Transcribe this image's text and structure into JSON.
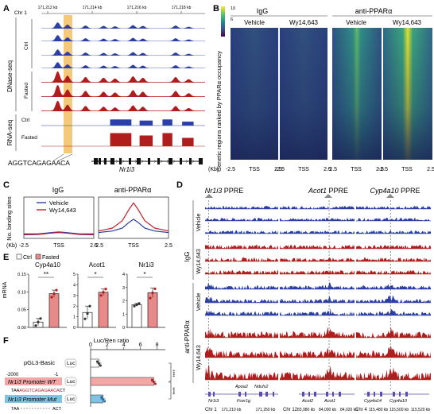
{
  "panels": {
    "A": {
      "letter": "A",
      "chr": "Chr 1",
      "coords": [
        "171,212 kb",
        "171,214 kb",
        "171,216 kb",
        "171,218 kb"
      ],
      "dnase_label": "DNase-seq",
      "rnaseq_label": "RNA-seq",
      "groups": [
        "Ctrl",
        "Fasted"
      ],
      "rna_groups": [
        "Ctrl",
        "Fasted"
      ],
      "motif": "AGGTCAGAGAACA",
      "gene": "Nr1i3",
      "colors": {
        "ctrl": "#2b3fa6",
        "fasted": "#b11d1d",
        "highlight": "#f5c97a"
      }
    },
    "B": {
      "letter": "B",
      "groups": [
        "IgG",
        "anti-PPARα"
      ],
      "conditions": [
        "Vehicle",
        "Wy14,643",
        "Vehicle",
        "Wy14,643"
      ],
      "ylabel": "Genetic regions ranked by PPARα occupancy",
      "kb_label": "(Kb)",
      "ticks": [
        "-2.5",
        "TSS",
        "2.5"
      ],
      "colorbar": [
        "10",
        "8",
        "6",
        "4",
        "2",
        "0"
      ]
    },
    "C": {
      "letter": "C",
      "titles": [
        "IgG",
        "anti-PPARα"
      ],
      "ylabel": "No. binding sites",
      "legend": [
        "Vehicle",
        "Wy14,643"
      ],
      "kb_label": "(Kb)",
      "ticks": [
        "-2.5",
        "TSS",
        "2.5"
      ]
    },
    "D": {
      "letter": "D",
      "loci": [
        {
          "gene": "Nr1i3",
          "suffix": "PPRE"
        },
        {
          "gene": "Acot1",
          "suffix": "PPRE"
        },
        {
          "gene": "Cyp4a10",
          "suffix": "PPRE"
        }
      ],
      "groups": [
        "IgG",
        "anti-PPARα"
      ],
      "conditions": [
        "Vehicle",
        "Wy14,643"
      ],
      "chroms": [
        "Chr 1",
        "Chr 12",
        "Chr 4"
      ],
      "coords": [
        [
          "171,210 kb",
          "171,250 kb"
        ],
        [
          "83,980 kb",
          "84,000 kb",
          "84,020 kb"
        ],
        [
          "115,480 kb",
          "115,500 kb",
          "115,520 kb"
        ]
      ],
      "genes": [
        [
          "Apoa2",
          "Ndufs2",
          "Nr1i3",
          "Fcer1g"
        ],
        [
          "Acot2",
          "Acot1"
        ],
        [
          "Cyp4a14",
          "Cyp4a10"
        ]
      ]
    },
    "E": {
      "letter": "E",
      "legend": [
        "Ctrl",
        "Fasted"
      ],
      "ylabel": "mRNA",
      "charts": [
        {
          "title": "Cyp4a10",
          "sig": "**",
          "ylim": [
            0,
            0.15
          ],
          "ticks": [
            "0.00",
            "0.05",
            "0.10",
            "0.15"
          ]
        },
        {
          "title": "Acot1",
          "sig": "*",
          "ylim": [
            0,
            5
          ],
          "ticks": [
            "0",
            "1",
            "2",
            "3",
            "4",
            "5"
          ]
        },
        {
          "title": "Nr1i3",
          "sig": "*",
          "ylim": [
            0,
            4
          ],
          "ticks": [
            "0",
            "1",
            "2",
            "3",
            "4"
          ]
        }
      ]
    },
    "F": {
      "letter": "F",
      "constructs": [
        "pGL3-Basic",
        "Nr1i3 Promoter WT",
        "Nr1i3 Promoter Mut"
      ],
      "luc": "Luc",
      "pos_start": "-2000",
      "pos_end": "-1",
      "wt_seq_pre": "TAA",
      "wt_seq_motif": "AGGTCAGAGAACA",
      "wt_seq_post": "CT",
      "mut_seq_pre": "TAA",
      "mut_seq_post": "ACT",
      "xlabel": "Luc/Ren ratio",
      "ticks": [
        "0",
        "2",
        "4",
        "6",
        "8"
      ],
      "sig": "****"
    }
  },
  "chart_data": [
    {
      "type": "line",
      "title": "IgG",
      "ylabel": "No. binding sites",
      "xlabel": "(Kb)",
      "x_ticks": [
        "-2.5",
        "TSS",
        "2.5"
      ],
      "series": [
        {
          "name": "Vehicle",
          "x": [
            -2.5,
            -1.5,
            -0.5,
            0,
            0.5,
            1.5,
            2.5
          ],
          "values": [
            0.15,
            0.15,
            0.2,
            0.22,
            0.2,
            0.15,
            0.15
          ]
        },
        {
          "name": "Wy14,643",
          "x": [
            -2.5,
            -1.5,
            -0.5,
            0,
            0.5,
            1.5,
            2.5
          ],
          "values": [
            0.12,
            0.13,
            0.18,
            0.2,
            0.18,
            0.13,
            0.12
          ]
        }
      ]
    },
    {
      "type": "line",
      "title": "anti-PPARα",
      "x_ticks": [
        "-2.5",
        "TSS",
        "2.5"
      ],
      "series": [
        {
          "name": "Vehicle",
          "x": [
            -2.5,
            -1.5,
            -0.8,
            -0.3,
            0,
            0.3,
            0.8,
            1.5,
            2.5
          ],
          "values": [
            0.2,
            0.25,
            0.35,
            0.55,
            0.65,
            0.55,
            0.35,
            0.25,
            0.2
          ]
        },
        {
          "name": "Wy14,643",
          "x": [
            -2.5,
            -1.5,
            -0.8,
            -0.3,
            0,
            0.3,
            0.8,
            1.5,
            2.5
          ],
          "values": [
            0.25,
            0.35,
            0.6,
            1.0,
            1.2,
            1.0,
            0.6,
            0.35,
            0.25
          ]
        }
      ]
    },
    {
      "type": "bar",
      "title": "Cyp4a10",
      "ylabel": "mRNA",
      "categories": [
        "Ctrl",
        "Fasted"
      ],
      "values": [
        0.015,
        0.095
      ],
      "ylim": [
        0,
        0.15
      ],
      "points": [
        [
          0.005,
          0.015,
          0.025
        ],
        [
          0.085,
          0.095,
          0.105
        ]
      ]
    },
    {
      "type": "bar",
      "title": "Acot1",
      "categories": [
        "Ctrl",
        "Fasted"
      ],
      "values": [
        1.4,
        3.3
      ],
      "ylim": [
        0,
        5
      ],
      "points": [
        [
          0.8,
          1.3,
          2.0
        ],
        [
          3.0,
          3.3,
          3.6
        ]
      ]
    },
    {
      "type": "bar",
      "title": "Nr1i3",
      "categories": [
        "Ctrl",
        "Fasted"
      ],
      "values": [
        1.7,
        2.6
      ],
      "ylim": [
        0,
        4
      ],
      "points": [
        [
          1.6,
          1.7,
          1.8
        ],
        [
          2.2,
          2.6,
          2.9
        ]
      ]
    },
    {
      "type": "bar",
      "xlabel": "Luc/Ren ratio",
      "categories": [
        "pGL3-Basic",
        "Nr1i3 Promoter WT",
        "Nr1i3 Promoter Mut"
      ],
      "values": [
        1.0,
        7.6,
        1.5
      ],
      "xlim": [
        0,
        9
      ]
    }
  ]
}
